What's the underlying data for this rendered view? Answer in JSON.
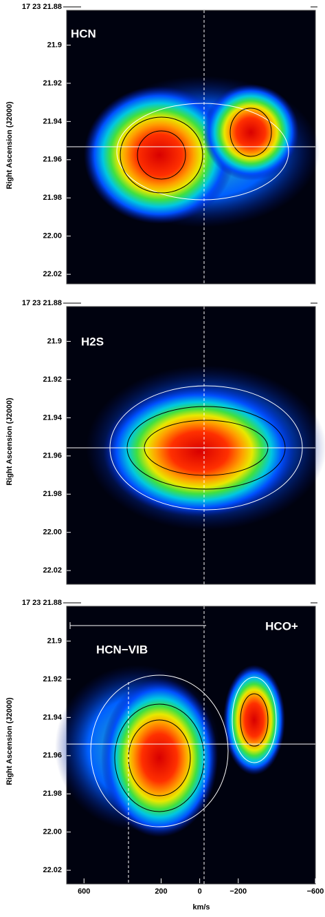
{
  "chart_data": [
    {
      "type": "image",
      "title": "HCN",
      "y_label": "Right Ascension (J2000)",
      "ylim": [
        21.88,
        22.025
      ],
      "xlim": [
        690,
        -600
      ],
      "yticks": [
        {
          "value": 21.88,
          "label": "17 23 21.88"
        },
        21.9,
        {
          "value": 21.92,
          "label": "21.92"
        },
        21.94,
        21.96,
        21.98,
        {
          "value": 22.0,
          "label": "22.00"
        },
        22.02
      ]
    },
    {
      "type": "image",
      "title": "H2S",
      "y_label": "Right Ascension (J2000)",
      "ylim": [
        21.88,
        22.025
      ],
      "xlim": [
        690,
        -600
      ],
      "yticks": [
        {
          "value": 21.88,
          "label": "17 23 21.88"
        },
        21.9,
        {
          "value": 21.92,
          "label": "21.92"
        },
        21.94,
        21.96,
        21.98,
        {
          "value": 22.0,
          "label": "22.00"
        },
        22.02
      ]
    },
    {
      "type": "image",
      "title": "HCO+",
      "annotation": "HCN−VIB",
      "y_label": "Right Ascension (J2000)",
      "x_label": "km/s",
      "ylim": [
        21.88,
        22.025
      ],
      "xlim": [
        690,
        -600
      ],
      "yticks": [
        {
          "value": 21.88,
          "label": "17 23 21.88"
        },
        21.9,
        {
          "value": 21.92,
          "label": "21.92"
        },
        21.94,
        21.96,
        21.98,
        {
          "value": 22.0,
          "label": "22.00"
        },
        22.02
      ],
      "xticks": [
        600,
        200,
        0,
        {
          "value": -200,
          "label": "−200"
        },
        {
          "value": -600,
          "label": "−600"
        }
      ]
    }
  ]
}
